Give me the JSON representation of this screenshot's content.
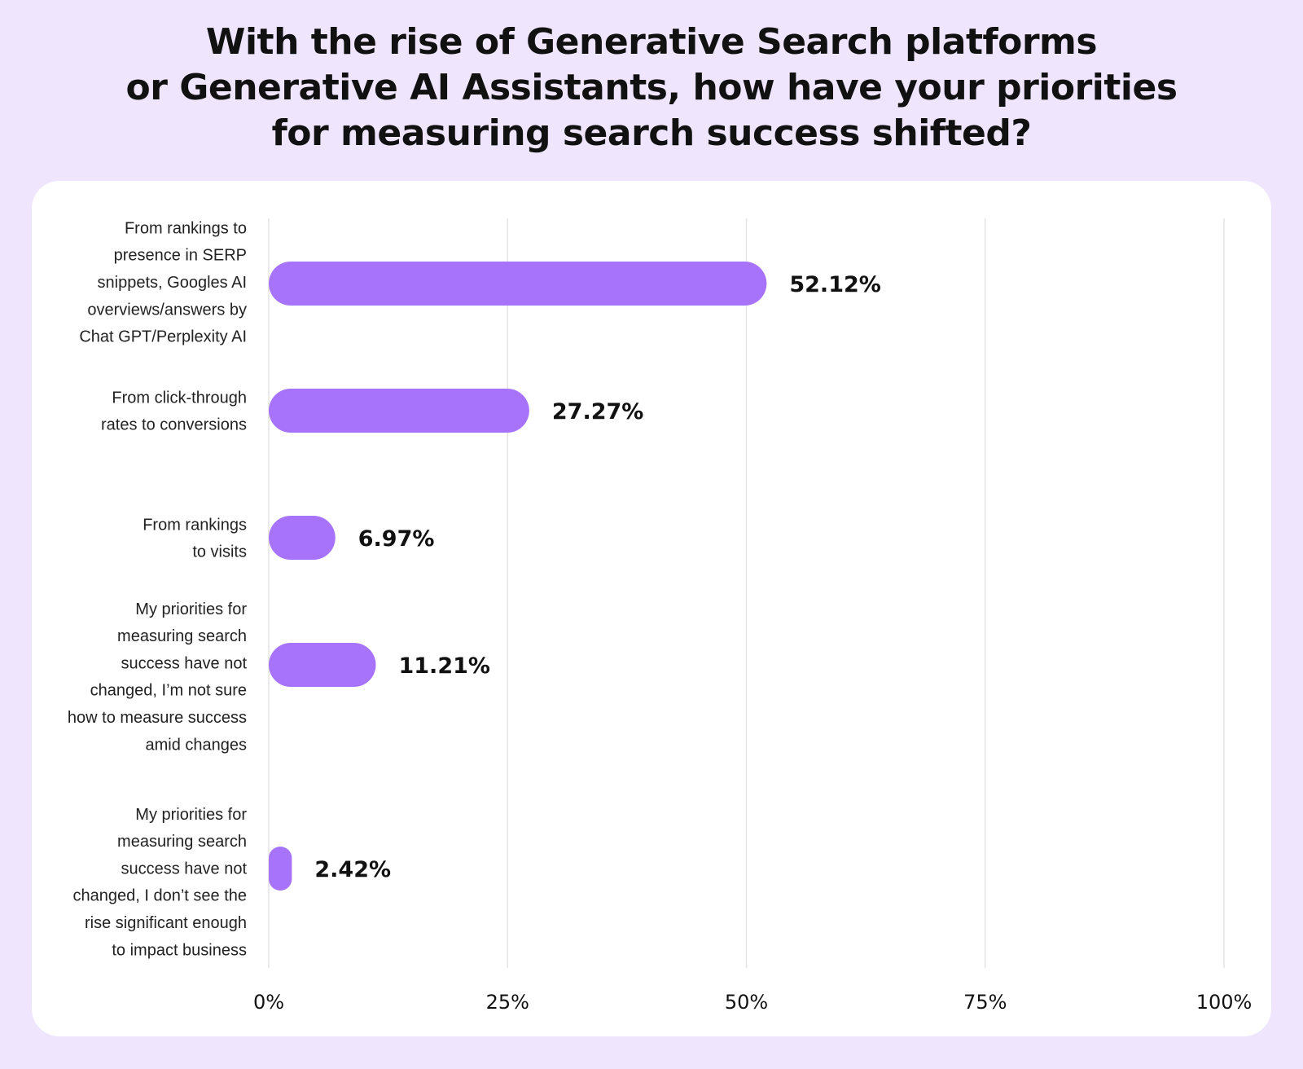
{
  "chart_data": {
    "type": "bar",
    "orientation": "horizontal",
    "title_lines": [
      "With the rise of Generative Search platforms",
      "or Generative AI Assistants, how have your priorities",
      "for measuring search success shifted?"
    ],
    "categories": [
      [
        "From rankings to",
        "presence in SERP",
        "snippets, Googles AI",
        "overviews/answers by",
        "Chat GPT/Perplexity AI"
      ],
      [
        "From click-through",
        "rates to conversions"
      ],
      [
        "From rankings",
        "to visits"
      ],
      [
        "My priorities for",
        "measuring search",
        "success have not",
        "changed, I’m not sure",
        "how to measure success",
        "amid changes"
      ],
      [
        "My priorities for",
        "measuring search",
        "success have not",
        "changed, I don’t see the",
        "rise significant enough",
        "to impact business"
      ]
    ],
    "values": [
      52.12,
      27.27,
      6.97,
      11.21,
      2.42
    ],
    "value_labels": [
      "52.12%",
      "27.27%",
      "6.97%",
      "11.21%",
      "2.42%"
    ],
    "xticks": [
      0,
      25,
      50,
      75,
      100
    ],
    "xtick_labels": [
      "0%",
      "25%",
      "50%",
      "75%",
      "100%"
    ],
    "xlim": [
      0,
      100
    ],
    "xlabel": "",
    "ylabel": "",
    "grid": true,
    "colors": {
      "bar": "#a773fb",
      "gridline": "#e4e4e4",
      "page_background": "#efe6fe",
      "card_background": "#ffffff",
      "text": "#111111"
    }
  }
}
